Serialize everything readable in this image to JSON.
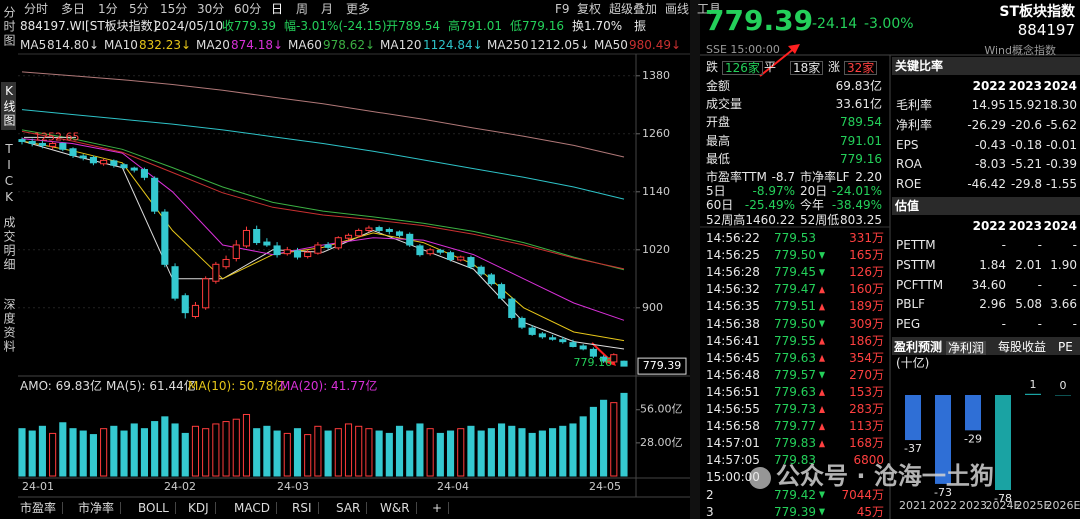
{
  "left": {
    "side_tabs": [
      "分时图",
      "K线图",
      "TICK",
      "成交明细",
      "深度资料"
    ],
    "periods": [
      "分时",
      "多日",
      "1分",
      "5分",
      "15分",
      "30分",
      "60分",
      "日",
      "周",
      "月",
      "更多"
    ],
    "tools": [
      "F9",
      "复权",
      "超级叠加",
      "画线",
      "工具"
    ],
    "info": [
      "884197.WI[ST板块指数]",
      "2024/05/10",
      "收779.39",
      "幅-3.01%(-24.15)",
      "开789.54",
      "高791.01",
      "低779.16",
      "换1.70%",
      "振"
    ],
    "kline": {
      "type": "candlestick",
      "open": [
        1248,
        1244,
        1240,
        1234,
        1240,
        1229,
        1214,
        1211,
        1198,
        1204,
        1196,
        1189,
        1186,
        1168,
        1098,
        985,
        925,
        882,
        900,
        955,
        985,
        1002,
        1028,
        1062,
        1036,
        1028,
        1012,
        1018,
        1006,
        1013,
        1030,
        1024,
        1044,
        1049,
        1060,
        1066,
        1062,
        1057,
        1052,
        1028,
        1012,
        1019,
        1014,
        999,
        1004,
        984,
        968,
        948,
        918,
        878,
        858,
        846,
        838,
        834,
        828,
        821,
        814,
        798,
        788,
        789.54
      ],
      "high": [
        1252.65,
        1250,
        1246,
        1244,
        1242,
        1232,
        1218,
        1215,
        1208,
        1207,
        1199,
        1192,
        1190,
        1172,
        1104,
        992,
        930,
        912,
        965,
        995,
        1008,
        1040,
        1068,
        1070,
        1044,
        1036,
        1026,
        1024,
        1020,
        1036,
        1036,
        1048,
        1054,
        1064,
        1070,
        1070,
        1066,
        1060,
        1056,
        1032,
        1024,
        1022,
        1018,
        1008,
        1008,
        988,
        972,
        952,
        922,
        882,
        864,
        850,
        844,
        840,
        834,
        825,
        818,
        802,
        806,
        791.01
      ],
      "low": [
        1238,
        1234,
        1230,
        1228,
        1224,
        1210,
        1205,
        1195,
        1194,
        1190,
        1186,
        1180,
        1164,
        1094,
        984,
        915,
        878,
        878,
        896,
        950,
        980,
        996,
        1024,
        1030,
        1026,
        1004,
        1008,
        1000,
        1002,
        1010,
        1020,
        1020,
        1040,
        1046,
        1056,
        1056,
        1052,
        1046,
        1026,
        1006,
        1008,
        1010,
        996,
        996,
        980,
        966,
        946,
        916,
        876,
        856,
        842,
        836,
        832,
        826,
        818,
        812,
        796,
        786,
        786,
        779.16
      ],
      "close": [
        1244,
        1240,
        1236,
        1240,
        1228,
        1215,
        1210,
        1200,
        1205,
        1195,
        1190,
        1185,
        1170,
        1100,
        990,
        920,
        890,
        905,
        960,
        990,
        1000,
        1030,
        1060,
        1035,
        1030,
        1010,
        1020,
        1005,
        1015,
        1030,
        1025,
        1045,
        1050,
        1060,
        1065,
        1060,
        1058,
        1050,
        1030,
        1010,
        1020,
        1015,
        1000,
        1005,
        985,
        970,
        950,
        920,
        880,
        860,
        845,
        840,
        835,
        830,
        820,
        815,
        800,
        790,
        803,
        779.39
      ],
      "up_color": "#ff3c3c",
      "down_color": "#35c9d0",
      "ma_lines": [
        {
          "name": "MA5",
          "value_label": "814.80↓",
          "color": "#dcdcdc",
          "values": [
            1245,
            1215,
            1190,
            960,
            960,
            1020,
            1015,
            1060,
            1020,
            980,
            870,
            830,
            814.8
          ]
        },
        {
          "name": "MA10",
          "value_label": "832.23↓",
          "color": "#e6c619",
          "values": [
            1245,
            1225,
            1200,
            1060,
            960,
            1010,
            1025,
            1055,
            1035,
            990,
            900,
            850,
            832.23
          ]
        },
        {
          "name": "MA20",
          "value_label": "874.18↓",
          "color": "#d830d8",
          "values": [
            1250,
            1240,
            1220,
            1140,
            1030,
            1010,
            1030,
            1045,
            1040,
            1010,
            960,
            910,
            874.18
          ]
        },
        {
          "name": "MA60",
          "value_label": "978.62↓",
          "color": "#3cb043",
          "values": [
            1268,
            1250,
            1228,
            1190,
            1150,
            1118,
            1100,
            1088,
            1075,
            1058,
            1035,
            1005,
            978.62
          ]
        },
        {
          "name": "MA120",
          "value_label": "1124.84↓",
          "color": "#2ec3c8",
          "values": [
            1310,
            1300,
            1290,
            1280,
            1268,
            1254,
            1240,
            1224,
            1206,
            1188,
            1170,
            1150,
            1124.84
          ]
        },
        {
          "name": "MA250",
          "value_label": "1212.05↓",
          "color": "#b07878",
          "values": [
            1388,
            1380,
            1372,
            1362,
            1350,
            1336,
            1322,
            1306,
            1290,
            1272,
            1255,
            1236,
            1212.05
          ]
        },
        {
          "name": "MA50",
          "value_label": "980.49↓",
          "color": "#c83030",
          "values": [
            1265,
            1245,
            1222,
            1180,
            1138,
            1108,
            1092,
            1082,
            1070,
            1052,
            1030,
            1003,
            980.49
          ]
        }
      ],
      "ylim": [
        761,
        1423
      ],
      "yticks": [
        1380,
        1260,
        1140,
        1020,
        900
      ],
      "max_label": "1252.65",
      "min_label": "779.16",
      "last_label": "779.39",
      "dates": [
        "24-01",
        "24-02",
        "24-03",
        "24-04",
        "24-05"
      ]
    },
    "volume": {
      "type": "bar",
      "values": [
        40,
        38,
        42,
        36,
        45,
        40,
        38,
        35,
        40,
        42,
        38,
        44,
        40,
        46,
        50,
        44,
        36,
        42,
        40,
        44,
        46,
        48,
        52,
        40,
        42,
        38,
        36,
        40,
        35,
        42,
        38,
        40,
        44,
        42,
        40,
        38,
        36,
        42,
        38,
        44,
        40,
        36,
        38,
        40,
        42,
        38,
        40,
        44,
        42,
        40,
        36,
        38,
        40,
        42,
        44,
        50,
        58,
        64,
        62,
        69.83
      ],
      "ylim": [
        0,
        71
      ],
      "yticks": [
        {
          "value": 56,
          "label": "56.00亿"
        },
        {
          "value": 28,
          "label": "28.00亿"
        }
      ],
      "legend": [
        "AMO: 69.83亿",
        "MA(5): 61.44亿",
        "MA(10): 50.78亿",
        "MA(20): 41.77亿"
      ]
    },
    "bottom_tabs": [
      "市盈率",
      "市净率",
      "BOLL",
      "KDJ",
      "MACD",
      "RSI",
      "SAR",
      "W&R",
      "+"
    ]
  },
  "quote": {
    "price": "779.39",
    "change": "-24.14",
    "pct": "-3.00%",
    "name": "ST板块指数",
    "code": "884197",
    "time": "SSE 15:00:00",
    "index_type": "Wind概念指数",
    "breadth": [
      "跌",
      "126家",
      "平",
      "18家",
      "涨",
      "32家"
    ],
    "stats": [
      [
        "金额",
        "69.83亿"
      ],
      [
        "成交量",
        "33.61亿"
      ],
      [
        "开盘",
        "789.54"
      ],
      [
        "最高",
        "791.01"
      ],
      [
        "最低",
        "779.16"
      ]
    ],
    "stats2": [
      [
        "市盈率TTM",
        "-8.7",
        "市净率LF",
        "2.20"
      ],
      [
        "5日",
        "-8.97%",
        "20日",
        "-24.01%"
      ],
      [
        "60日",
        "-25.49%",
        "今年",
        "-38.49%"
      ],
      [
        "52周高",
        "1460.22",
        "52周低",
        "803.25"
      ]
    ],
    "ticks": [
      {
        "time": "14:56:22",
        "price": "779.53",
        "vol": "331万"
      },
      {
        "time": "14:56:25",
        "price": "779.50",
        "dir": "down",
        "vol": "165万"
      },
      {
        "time": "14:56:28",
        "price": "779.45",
        "dir": "down",
        "vol": "126万"
      },
      {
        "time": "14:56:32",
        "price": "779.47",
        "dir": "up",
        "vol": "160万"
      },
      {
        "time": "14:56:35",
        "price": "779.51",
        "dir": "up",
        "vol": "189万"
      },
      {
        "time": "14:56:38",
        "price": "779.50",
        "dir": "down",
        "vol": "309万"
      },
      {
        "time": "14:56:41",
        "price": "779.55",
        "dir": "up",
        "vol": "186万"
      },
      {
        "time": "14:56:45",
        "price": "779.63",
        "dir": "up",
        "vol": "354万"
      },
      {
        "time": "14:56:48",
        "price": "779.57",
        "dir": "down",
        "vol": "270万"
      },
      {
        "time": "14:56:51",
        "price": "779.63",
        "dir": "up",
        "vol": "153万"
      },
      {
        "time": "14:56:55",
        "price": "779.73",
        "dir": "up",
        "vol": "283万"
      },
      {
        "time": "14:56:58",
        "price": "779.77",
        "dir": "up",
        "vol": "113万"
      },
      {
        "time": "14:57:01",
        "price": "779.83",
        "dir": "up",
        "vol": "168万"
      },
      {
        "time": "14:57:05",
        "price": "779.83",
        "vol": "6800"
      },
      {
        "time": "15:00:00"
      },
      {
        "time": "2",
        "price": "779.42",
        "dir": "down",
        "vol": "7044万"
      },
      {
        "time": "3",
        "price": "779.39",
        "dir": "down",
        "vol": "45万"
      }
    ]
  },
  "fundamentals": {
    "ratios": {
      "title": "关键比率",
      "years": [
        "2022",
        "2023",
        "2024"
      ],
      "rows": [
        [
          "毛利率",
          "14.95",
          "15.92",
          "18.30"
        ],
        [
          "净利率",
          "-26.29",
          "-20.6",
          "-5.62"
        ],
        [
          "EPS",
          "-0.43",
          "-0.18",
          "-0.01"
        ],
        [
          "ROA",
          "-8.03",
          "-5.21",
          "-0.39"
        ],
        [
          "ROE",
          "-46.42",
          "-29.8",
          "-1.55"
        ]
      ]
    },
    "valuation": {
      "title": "估值",
      "years": [
        "2022",
        "2023",
        "2024"
      ],
      "rows": [
        [
          "PETTM",
          "-",
          "-",
          "-"
        ],
        [
          "PSTTM",
          "1.84",
          "2.01",
          "1.90"
        ],
        [
          "PCFTTM",
          "34.60",
          "-",
          "-"
        ],
        [
          "PBLF",
          "2.96",
          "5.08",
          "3.66"
        ],
        [
          "PEG",
          "-",
          "-",
          "-"
        ]
      ]
    },
    "forecast": {
      "tabs": [
        "盈利预测",
        "净利润",
        "每股收益",
        "PE"
      ],
      "unit": "(十亿)",
      "chart": {
        "type": "bar",
        "categories": [
          "2021",
          "2022",
          "2023",
          "2024E",
          "2025E",
          "2026E"
        ],
        "values": [
          -37,
          -73,
          -29,
          -78,
          1,
          0
        ],
        "colors": [
          "#2f6fd6",
          "#2f6fd6",
          "#2f6fd6",
          "#1aa3a3",
          "#1aa3a3",
          "#1aa3a3"
        ]
      }
    }
  },
  "watermark": "公众号 · 沧海一土狗"
}
